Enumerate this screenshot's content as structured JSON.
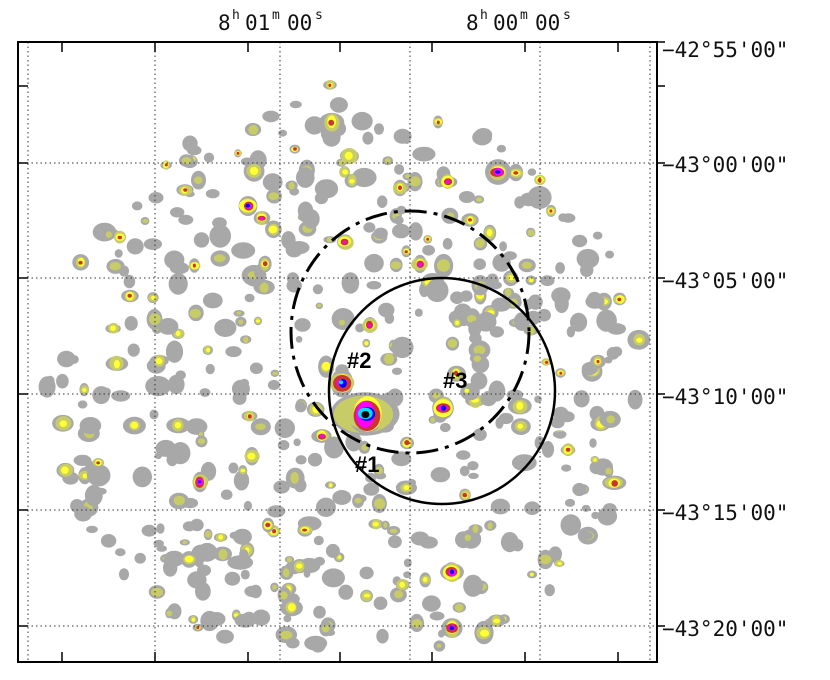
{
  "chart_data": {
    "type": "heatmap",
    "title": "",
    "xlabel": "",
    "ylabel": "",
    "x_ticks": [
      {
        "h": "8",
        "m": "01",
        "s": "00",
        "value": "8h01m00s"
      },
      {
        "h": "8",
        "m": "00",
        "s": "00",
        "value": "8h00m00s"
      }
    ],
    "y_ticks": [
      "−42°55'00\"",
      "−43°00'00\"",
      "−43°05'00\"",
      "−43°10'00\"",
      "−43°15'00\"",
      "−43°20'00\""
    ],
    "y_tick_minutes": [
      -2575,
      -2580,
      -2585,
      -2590,
      -2595,
      -2600
    ],
    "colormap": [
      "#a8a8a8",
      "#c8cc66",
      "#ffff33",
      "#cc3333",
      "#ff00ff",
      "#0000ff",
      "#00ddff",
      "#000000"
    ],
    "grid": true,
    "sources": [
      {
        "label": "#1",
        "level": 7
      },
      {
        "label": "#2",
        "level": 6
      },
      {
        "label": "#3",
        "level": 5
      }
    ],
    "overlays": [
      {
        "name": "dash-dot circle",
        "style": "dash-dot"
      },
      {
        "name": "solid circle",
        "style": "solid"
      }
    ]
  }
}
